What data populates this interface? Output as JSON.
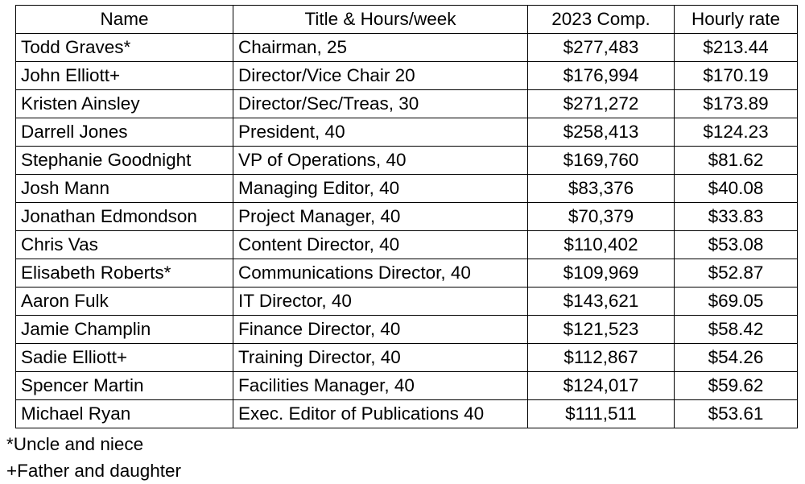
{
  "table": {
    "headers": {
      "name": "Name",
      "title": "Title & Hours/week",
      "comp": "2023 Comp.",
      "rate": "Hourly rate"
    },
    "rows": [
      {
        "name": "Todd Graves*",
        "title": "Chairman, 25",
        "comp": "$277,483",
        "rate": "$213.44"
      },
      {
        "name": "John Elliott+",
        "title": "Director/Vice Chair 20",
        "comp": "$176,994",
        "rate": "$170.19"
      },
      {
        "name": "Kristen Ainsley",
        "title": "Director/Sec/Treas, 30",
        "comp": "$271,272",
        "rate": "$173.89"
      },
      {
        "name": "Darrell Jones",
        "title": "President, 40",
        "comp": "$258,413",
        "rate": "$124.23"
      },
      {
        "name": "Stephanie Goodnight",
        "title": "VP of Operations, 40",
        "comp": "$169,760",
        "rate": "$81.62"
      },
      {
        "name": "Josh Mann",
        "title": "Managing Editor, 40",
        "comp": "$83,376",
        "rate": "$40.08"
      },
      {
        "name": "Jonathan Edmondson",
        "title": "Project Manager, 40",
        "comp": "$70,379",
        "rate": "$33.83"
      },
      {
        "name": "Chris Vas",
        "title": "Content Director, 40",
        "comp": "$110,402",
        "rate": "$53.08"
      },
      {
        "name": "Elisabeth Roberts*",
        "title": "Communications Director, 40",
        "comp": "$109,969",
        "rate": "$52.87"
      },
      {
        "name": "Aaron Fulk",
        "title": "IT Director, 40",
        "comp": "$143,621",
        "rate": "$69.05"
      },
      {
        "name": "Jamie Champlin",
        "title": "Finance Director, 40",
        "comp": "$121,523",
        "rate": "$58.42"
      },
      {
        "name": "Sadie Elliott+",
        "title": "Training Director, 40",
        "comp": "$112,867",
        "rate": "$54.26"
      },
      {
        "name": "Spencer Martin",
        "title": "Facilities Manager, 40",
        "comp": "$124,017",
        "rate": "$59.62"
      },
      {
        "name": "Michael Ryan",
        "title": "Exec. Editor of Publications 40",
        "comp": "$111,511",
        "rate": "$53.61"
      }
    ]
  },
  "notes": [
    "*Uncle and niece",
    "+Father and daughter"
  ]
}
